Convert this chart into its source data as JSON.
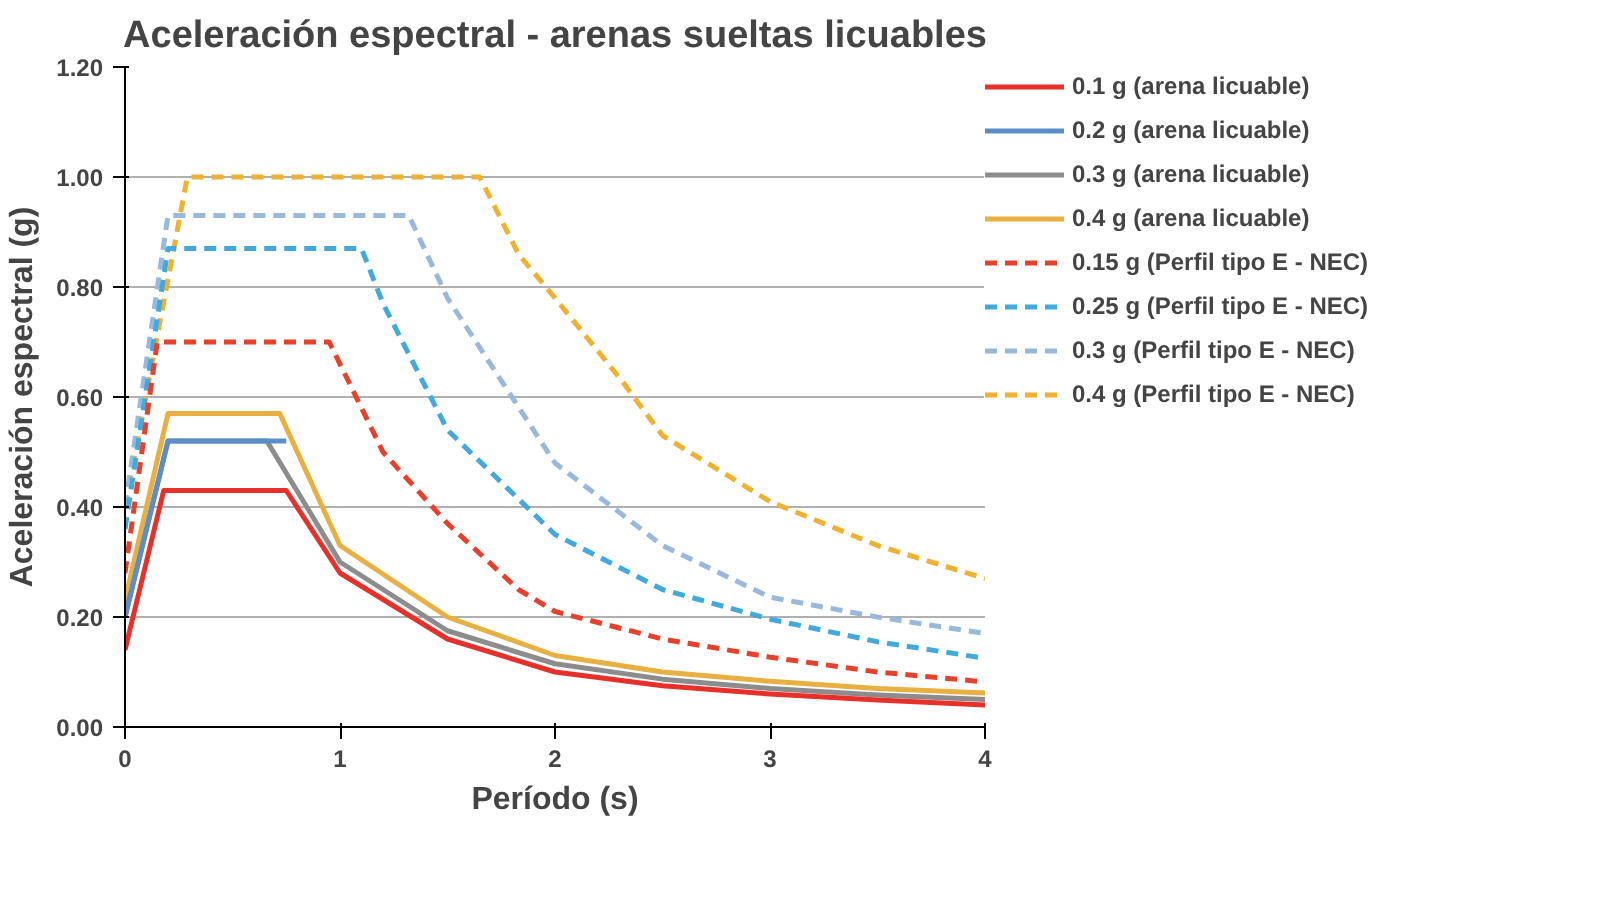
{
  "chart_data": {
    "type": "line",
    "title": "Aceleración espectral - arenas sueltas licuables",
    "xlabel": "Período (s)",
    "ylabel": "Aceleración espectral (g)",
    "xlim": [
      0,
      4
    ],
    "ylim": [
      0,
      1.2
    ],
    "xticks": [
      0,
      1,
      2,
      3,
      4
    ],
    "yticks": [
      {
        "value": 0,
        "label": "0.00"
      },
      {
        "value": 0.2,
        "label": "0.20"
      },
      {
        "value": 0.4,
        "label": "0.40"
      },
      {
        "value": 0.6,
        "label": "0.60"
      },
      {
        "value": 0.8,
        "label": "0.80"
      },
      {
        "value": 1,
        "label": "1.00"
      },
      {
        "value": 1.2,
        "label": "1.20"
      }
    ],
    "grid": "y",
    "legend": "right",
    "marker": "none",
    "series": [
      {
        "name": "0.1 g (arena licuable)",
        "color": "#e8302a",
        "line_style": "solid",
        "x": [
          0,
          0.18,
          0.75,
          1,
          1.5,
          2,
          2.5,
          3,
          3.5,
          4
        ],
        "values": [
          0.14,
          0.43,
          0.43,
          0.28,
          0.16,
          0.1,
          0.075,
          0.06,
          0.049,
          0.04
        ]
      },
      {
        "name": "0.2 g (arena licuable)",
        "color": "#5b8ec8",
        "line_style": "solid",
        "x": [
          0,
          0.2,
          0.75
        ],
        "values": [
          0.2,
          0.52,
          0.52
        ]
      },
      {
        "name": "0.3 g (arena licuable)",
        "color": "#8c8c8c",
        "line_style": "solid",
        "x": [
          0,
          0.2,
          0.66,
          1,
          1.5,
          2,
          2.5,
          3,
          3.5,
          4
        ],
        "values": [
          0.2,
          0.52,
          0.52,
          0.3,
          0.175,
          0.115,
          0.087,
          0.07,
          0.058,
          0.05
        ]
      },
      {
        "name": "0.4 g (arena licuable)",
        "color": "#e8b040",
        "line_style": "solid",
        "x": [
          0,
          0.2,
          0.72,
          1,
          1.5,
          2,
          2.5,
          3,
          3.5,
          4
        ],
        "values": [
          0.23,
          0.57,
          0.57,
          0.33,
          0.2,
          0.13,
          0.1,
          0.083,
          0.07,
          0.062
        ]
      },
      {
        "name": "0.15 g (Perfil tipo E - NEC)",
        "color": "#e8402a",
        "line_style": "dashed",
        "x": [
          0,
          0.15,
          0.95,
          1.2,
          1.5,
          1.83,
          2,
          2.5,
          3,
          3.5,
          4
        ],
        "values": [
          0.28,
          0.7,
          0.7,
          0.5,
          0.37,
          0.25,
          0.21,
          0.16,
          0.127,
          0.1,
          0.082
        ]
      },
      {
        "name": "0.25 g (Perfil tipo E - NEC)",
        "color": "#41a9dc",
        "line_style": "dashed",
        "x": [
          0,
          0.2,
          1.1,
          1.2,
          1.5,
          2,
          2.5,
          3,
          3.5,
          4
        ],
        "values": [
          0.36,
          0.87,
          0.87,
          0.77,
          0.54,
          0.35,
          0.25,
          0.196,
          0.155,
          0.125
        ]
      },
      {
        "name": "0.3 g (Perfil tipo E - NEC)",
        "color": "#98b8dc",
        "line_style": "dashed",
        "x": [
          0,
          0.2,
          1.32,
          1.5,
          2,
          2.5,
          3,
          3.5,
          4
        ],
        "values": [
          0.4,
          0.93,
          0.93,
          0.78,
          0.48,
          0.33,
          0.236,
          0.2,
          0.17
        ]
      },
      {
        "name": "0.4 g (Perfil tipo E - NEC)",
        "color": "#f0b030",
        "line_style": "dashed",
        "x": [
          0,
          0.29,
          1.65,
          1.83,
          2,
          2.31,
          2.5,
          3,
          3.5,
          4
        ],
        "values": [
          0.4,
          1.0,
          1.0,
          0.86,
          0.78,
          0.63,
          0.53,
          0.41,
          0.33,
          0.27
        ]
      }
    ]
  }
}
